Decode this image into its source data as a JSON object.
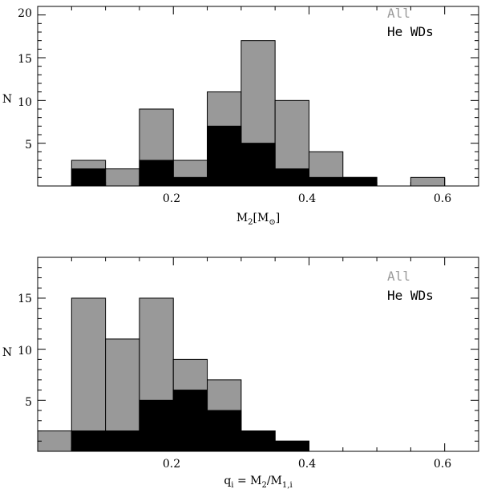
{
  "chart_data": [
    {
      "type": "histogram",
      "xlabel": "M",
      "xlabel_sub": "2",
      "xlabel_unit": "[M",
      "xlabel_unit_sub": "⊙",
      "xlabel_unit_close": "]",
      "ylabel": "N",
      "xlim": [
        0.0,
        0.65
      ],
      "ylim": [
        0,
        21
      ],
      "xticks": [
        "0.2",
        "0.4",
        "0.6"
      ],
      "yticks": [
        "5",
        "10",
        "15",
        "20"
      ],
      "bin_width": 0.05,
      "legend": [
        "All",
        "He WDs"
      ],
      "legend_position": "top-right",
      "colors": {
        "All": "#999999",
        "He WDs": "#000000"
      },
      "series": [
        {
          "name": "All",
          "bins": [
            {
              "x0": 0.05,
              "x1": 0.1,
              "y": 3
            },
            {
              "x0": 0.1,
              "x1": 0.15,
              "y": 2
            },
            {
              "x0": 0.15,
              "x1": 0.2,
              "y": 9
            },
            {
              "x0": 0.2,
              "x1": 0.25,
              "y": 3
            },
            {
              "x0": 0.25,
              "x1": 0.3,
              "y": 11
            },
            {
              "x0": 0.3,
              "x1": 0.35,
              "y": 17
            },
            {
              "x0": 0.35,
              "x1": 0.4,
              "y": 10
            },
            {
              "x0": 0.4,
              "x1": 0.45,
              "y": 4
            },
            {
              "x0": 0.45,
              "x1": 0.5,
              "y": 1
            },
            {
              "x0": 0.55,
              "x1": 0.6,
              "y": 1
            }
          ]
        },
        {
          "name": "He WDs",
          "bins": [
            {
              "x0": 0.05,
              "x1": 0.1,
              "y": 2
            },
            {
              "x0": 0.15,
              "x1": 0.2,
              "y": 3
            },
            {
              "x0": 0.2,
              "x1": 0.25,
              "y": 1
            },
            {
              "x0": 0.25,
              "x1": 0.3,
              "y": 7
            },
            {
              "x0": 0.3,
              "x1": 0.35,
              "y": 5
            },
            {
              "x0": 0.35,
              "x1": 0.4,
              "y": 2
            },
            {
              "x0": 0.4,
              "x1": 0.45,
              "y": 1
            },
            {
              "x0": 0.45,
              "x1": 0.5,
              "y": 1
            }
          ]
        }
      ]
    },
    {
      "type": "histogram",
      "xlabel": "q",
      "xlabel_sub": "i",
      "xlabel_rest": " = M",
      "xlabel_rest_sub": "2",
      "xlabel_rest2": "/M",
      "xlabel_rest2_sub": "1,i",
      "ylabel": "N",
      "xlim": [
        0.0,
        0.65
      ],
      "ylim": [
        0,
        19
      ],
      "xticks": [
        "0.2",
        "0.4",
        "0.6"
      ],
      "yticks": [
        "5",
        "10",
        "15"
      ],
      "bin_width": 0.05,
      "legend": [
        "All",
        "He WDs"
      ],
      "legend_position": "top-right",
      "colors": {
        "All": "#999999",
        "He WDs": "#000000"
      },
      "series": [
        {
          "name": "All",
          "bins": [
            {
              "x0": 0.0,
              "x1": 0.05,
              "y": 2
            },
            {
              "x0": 0.05,
              "x1": 0.1,
              "y": 15
            },
            {
              "x0": 0.1,
              "x1": 0.15,
              "y": 11
            },
            {
              "x0": 0.15,
              "x1": 0.2,
              "y": 15
            },
            {
              "x0": 0.2,
              "x1": 0.25,
              "y": 9
            },
            {
              "x0": 0.25,
              "x1": 0.3,
              "y": 7
            },
            {
              "x0": 0.3,
              "x1": 0.35,
              "y": 2
            },
            {
              "x0": 0.35,
              "x1": 0.4,
              "y": 1
            }
          ]
        },
        {
          "name": "He WDs",
          "bins": [
            {
              "x0": 0.05,
              "x1": 0.1,
              "y": 2
            },
            {
              "x0": 0.1,
              "x1": 0.15,
              "y": 2
            },
            {
              "x0": 0.15,
              "x1": 0.2,
              "y": 5
            },
            {
              "x0": 0.2,
              "x1": 0.25,
              "y": 6
            },
            {
              "x0": 0.25,
              "x1": 0.3,
              "y": 4
            },
            {
              "x0": 0.3,
              "x1": 0.35,
              "y": 2
            },
            {
              "x0": 0.35,
              "x1": 0.4,
              "y": 1
            }
          ]
        }
      ]
    }
  ]
}
